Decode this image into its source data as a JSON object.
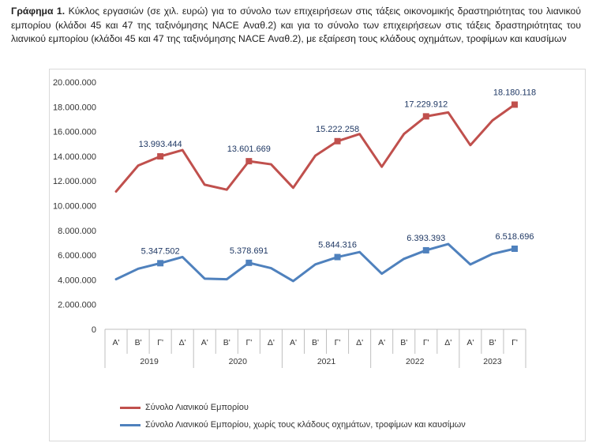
{
  "caption": {
    "bold": "Γράφημα 1.",
    "text": "Κύκλος εργασιών (σε χιλ. ευρώ) για το σύνολο των επιχειρήσεων στις τάξεις οικονομικής δραστηριότητας του λιανικού εμπορίου (κλάδοι 45 και 47 της ταξινόμησης NACE Αναθ.2) και για το σύνολο των επιχειρήσεων στις τάξεις δραστηριότητας του λιανικού εμπορίου (κλάδοι 45 και 47 της ταξινόμησης NACE Αναθ.2), με εξαίρεση τους κλάδους οχημάτων, τροφίμων και καυσίμων"
  },
  "chart_data": {
    "type": "line",
    "categories": [
      "Α'",
      "Β'",
      "Γ'",
      "Δ'",
      "Α'",
      "Β'",
      "Γ'",
      "Δ'",
      "Α'",
      "Β'",
      "Γ'",
      "Δ'",
      "Α'",
      "Β'",
      "Γ'",
      "Δ'",
      "Α'",
      "Β'",
      "Γ'"
    ],
    "years": [
      "2019",
      "2020",
      "2021",
      "2022",
      "2023"
    ],
    "yticks": [
      "0",
      "2.000.000",
      "4.000.000",
      "6.000.000",
      "8.000.000",
      "10.000.000",
      "12.000.000",
      "14.000.000",
      "16.000.000",
      "18.000.000",
      "20.000.000"
    ],
    "ylim": [
      0,
      20000000
    ],
    "grid": false,
    "legend_position": "bottom",
    "series": [
      {
        "name": "Σύνολο Λιανικού Εμπορίου",
        "color": "#c0504d",
        "values": [
          11150000,
          13250000,
          13993444,
          14500000,
          11700000,
          11300000,
          13601669,
          13350000,
          11450000,
          14050000,
          15222258,
          15800000,
          13150000,
          15800000,
          17229912,
          17550000,
          14900000,
          16900000,
          18180118
        ],
        "labels": {
          "2": "13.993.444",
          "6": "13.601.669",
          "10": "15.222.258",
          "14": "17.229.912",
          "18": "18.180.118"
        }
      },
      {
        "name": "Σύνολο Λιανικού Εμπορίου, χωρίς τους κλάδους οχημάτων, τροφίμων και καυσίμων",
        "color": "#4f81bd",
        "values": [
          4050000,
          4900000,
          5347502,
          5850000,
          4100000,
          4050000,
          5378691,
          4950000,
          3900000,
          5250000,
          5844316,
          6250000,
          4500000,
          5700000,
          6393393,
          6900000,
          5250000,
          6100000,
          6518696
        ],
        "labels": {
          "2": "5.347.502",
          "6": "5.378.691",
          "10": "5.844.316",
          "14": "6.393.393",
          "18": "6.518.696"
        }
      }
    ]
  }
}
